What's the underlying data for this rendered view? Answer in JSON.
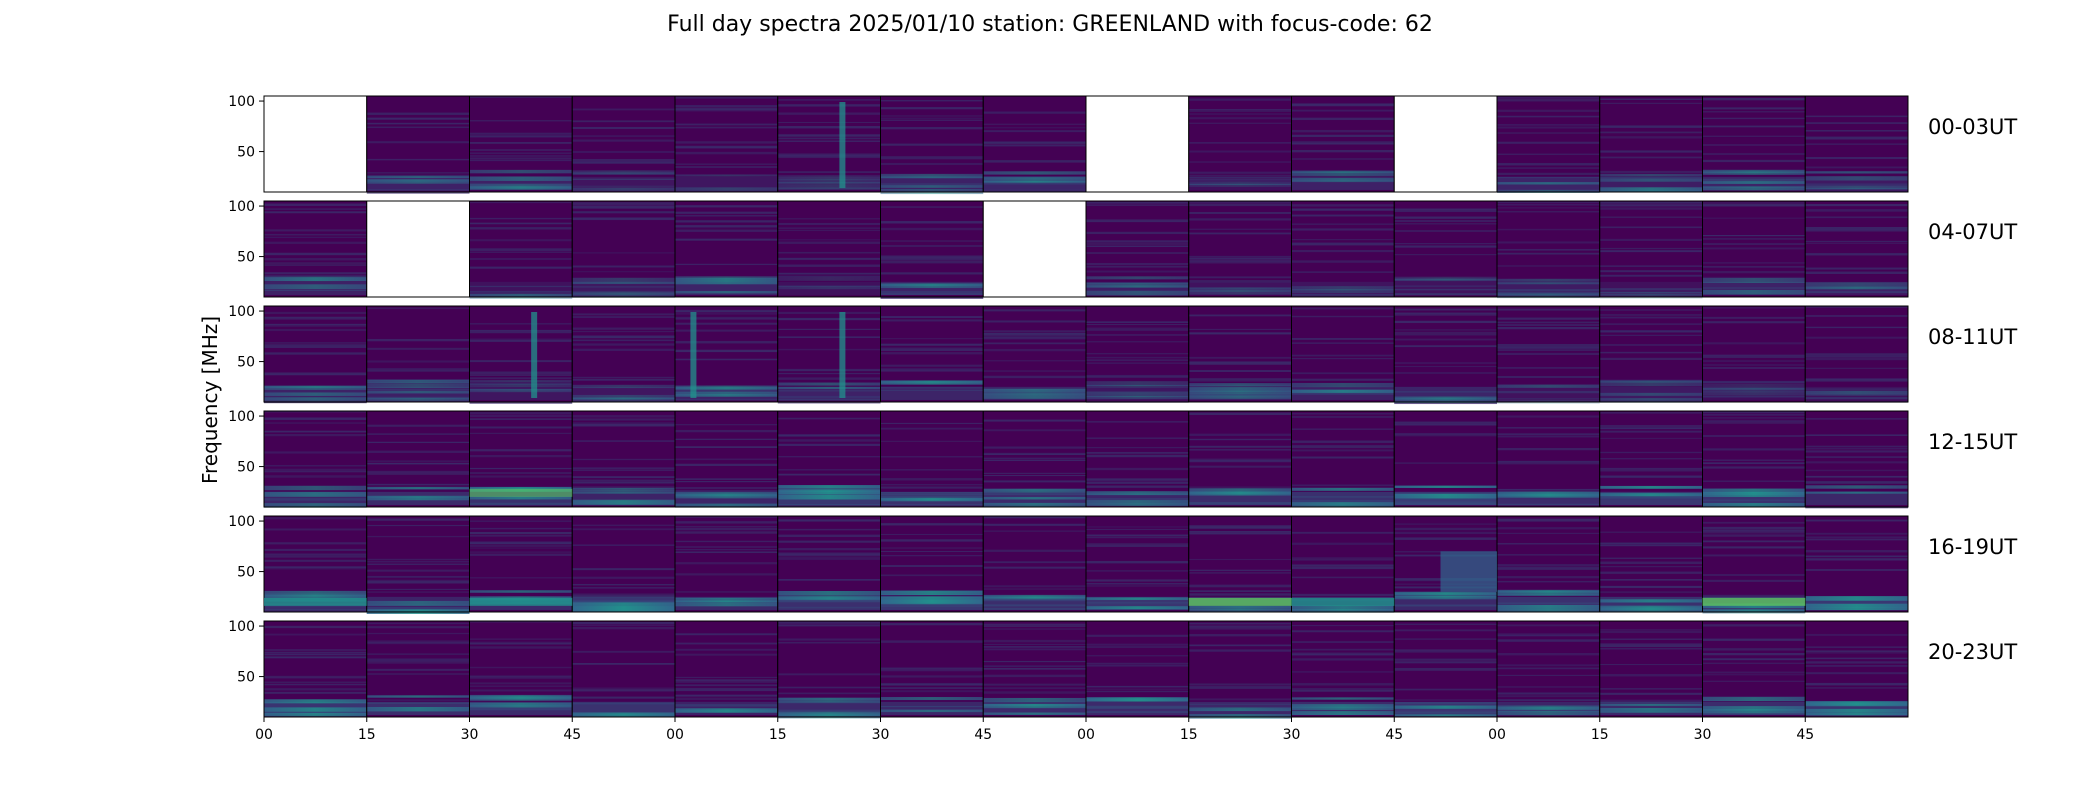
{
  "chart_data": {
    "type": "heatmap",
    "title": "Full day spectra 2025/01/10 station: GREENLAND with focus-code: 62",
    "ylabel": "Frequency [MHz]",
    "xlabel": "",
    "ylim": [
      10,
      105
    ],
    "y_ticks": [
      "100",
      "50"
    ],
    "x_ticks": [
      "00",
      "15",
      "30",
      "45",
      "00",
      "15",
      "30",
      "45",
      "00",
      "15",
      "30",
      "45",
      "00",
      "15",
      "30",
      "45"
    ],
    "colormap": "viridis",
    "rows": [
      {
        "label": "00-03UT",
        "missing_panels": [
          0,
          8,
          11
        ]
      },
      {
        "label": "04-07UT",
        "missing_panels": [
          1,
          7
        ]
      },
      {
        "label": "08-11UT",
        "missing_panels": []
      },
      {
        "label": "12-15UT",
        "missing_panels": []
      },
      {
        "label": "16-19UT",
        "missing_panels": []
      },
      {
        "label": "20-23UT",
        "missing_panels": []
      }
    ],
    "panels_per_row": 16,
    "panel_minutes": 15
  },
  "colors": {
    "background_low": "#440154",
    "mid": "#31688e",
    "high": "#21918c",
    "bright": "#5ec962",
    "peak": "#fde725"
  }
}
